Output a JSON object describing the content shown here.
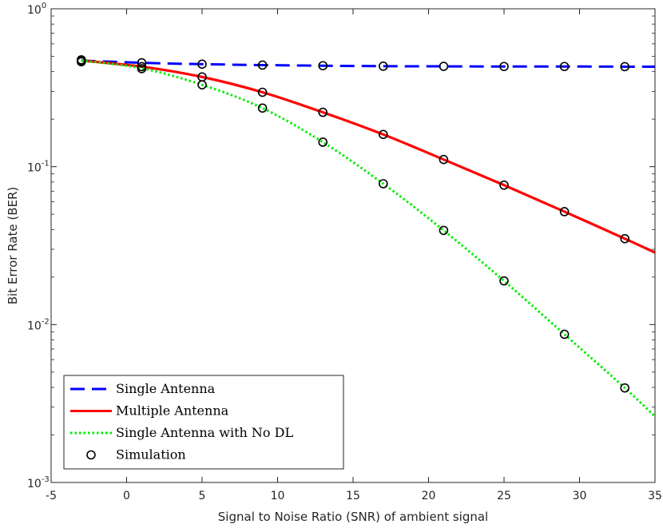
{
  "chart_data": {
    "type": "line",
    "title": "",
    "xlabel": "Signal to Noise Ratio (SNR) of ambient signal",
    "ylabel": "Bit Error Rate (BER)",
    "xlim": [
      -5,
      35
    ],
    "ylim": [
      0.001,
      1
    ],
    "yscale": "log",
    "grid": false,
    "x_ticks": [
      -5,
      0,
      5,
      10,
      15,
      20,
      25,
      30,
      35
    ],
    "x_tick_labels": [
      "-5",
      "0",
      "5",
      "10",
      "15",
      "20",
      "25",
      "30",
      "35"
    ],
    "y_ticks": [
      {
        "value": 1,
        "base": "10",
        "exp": "0"
      },
      {
        "value": 0.1,
        "base": "10",
        "exp": "-1"
      },
      {
        "value": 0.01,
        "base": "10",
        "exp": "-2"
      },
      {
        "value": 0.001,
        "base": "10",
        "exp": "-3"
      }
    ],
    "legend_position": "bottom-left",
    "series": [
      {
        "name": "Single Antenna",
        "color": "#0000FF",
        "style": "dashed",
        "x": [
          -3,
          1,
          5,
          9,
          13,
          17,
          21,
          25,
          29,
          33,
          35
        ],
        "values": [
          0.47,
          0.455,
          0.446,
          0.44,
          0.436,
          0.433,
          0.432,
          0.431,
          0.431,
          0.43,
          0.43
        ]
      },
      {
        "name": "Multiple Antenna",
        "color": "#FF0000",
        "style": "solid",
        "x": [
          -3,
          1,
          5,
          9,
          13,
          17,
          21,
          25,
          29,
          33,
          35
        ],
        "values": [
          0.47,
          0.43,
          0.37,
          0.296,
          0.221,
          0.16,
          0.111,
          0.0764,
          0.0519,
          0.035,
          0.0286
        ]
      },
      {
        "name": "Single Antenna with No DL",
        "color": "#00EE00",
        "style": "dotted",
        "x": [
          -3,
          1,
          5,
          9,
          13,
          17,
          21,
          25,
          29,
          33,
          35
        ],
        "values": [
          0.47,
          0.42,
          0.33,
          0.235,
          0.143,
          0.078,
          0.0395,
          0.0189,
          0.00868,
          0.00397,
          0.00262
        ]
      }
    ],
    "simulation": {
      "name": "Simulation",
      "marker": "circle",
      "color": "#000000",
      "points": [
        {
          "x": -3,
          "y": 0.475
        },
        {
          "x": -3,
          "y": 0.462
        },
        {
          "x": -3,
          "y": 0.468
        },
        {
          "x": 1,
          "y": 0.455
        },
        {
          "x": 1,
          "y": 0.43
        },
        {
          "x": 1,
          "y": 0.418
        },
        {
          "x": 5,
          "y": 0.446
        },
        {
          "x": 5,
          "y": 0.37
        },
        {
          "x": 5,
          "y": 0.33
        },
        {
          "x": 9,
          "y": 0.44
        },
        {
          "x": 9,
          "y": 0.296
        },
        {
          "x": 9,
          "y": 0.235
        },
        {
          "x": 13,
          "y": 0.436
        },
        {
          "x": 13,
          "y": 0.221
        },
        {
          "x": 13,
          "y": 0.143
        },
        {
          "x": 17,
          "y": 0.433
        },
        {
          "x": 17,
          "y": 0.16
        },
        {
          "x": 17,
          "y": 0.078
        },
        {
          "x": 21,
          "y": 0.432
        },
        {
          "x": 21,
          "y": 0.111
        },
        {
          "x": 21,
          "y": 0.0395
        },
        {
          "x": 25,
          "y": 0.431
        },
        {
          "x": 25,
          "y": 0.0764
        },
        {
          "x": 25,
          "y": 0.0189
        },
        {
          "x": 29,
          "y": 0.431
        },
        {
          "x": 29,
          "y": 0.0519
        },
        {
          "x": 29,
          "y": 0.00868
        },
        {
          "x": 33,
          "y": 0.43
        },
        {
          "x": 33,
          "y": 0.035
        },
        {
          "x": 33,
          "y": 0.00397
        }
      ]
    },
    "legend": [
      {
        "label": "Single Antenna",
        "symbol": "dashed",
        "color": "#0000FF"
      },
      {
        "label": "Multiple Antenna",
        "symbol": "solid",
        "color": "#FF0000"
      },
      {
        "label": "Single Antenna with No DL",
        "symbol": "dotted",
        "color": "#00EE00"
      },
      {
        "label": "Simulation",
        "symbol": "circle",
        "color": "#000000"
      }
    ]
  }
}
